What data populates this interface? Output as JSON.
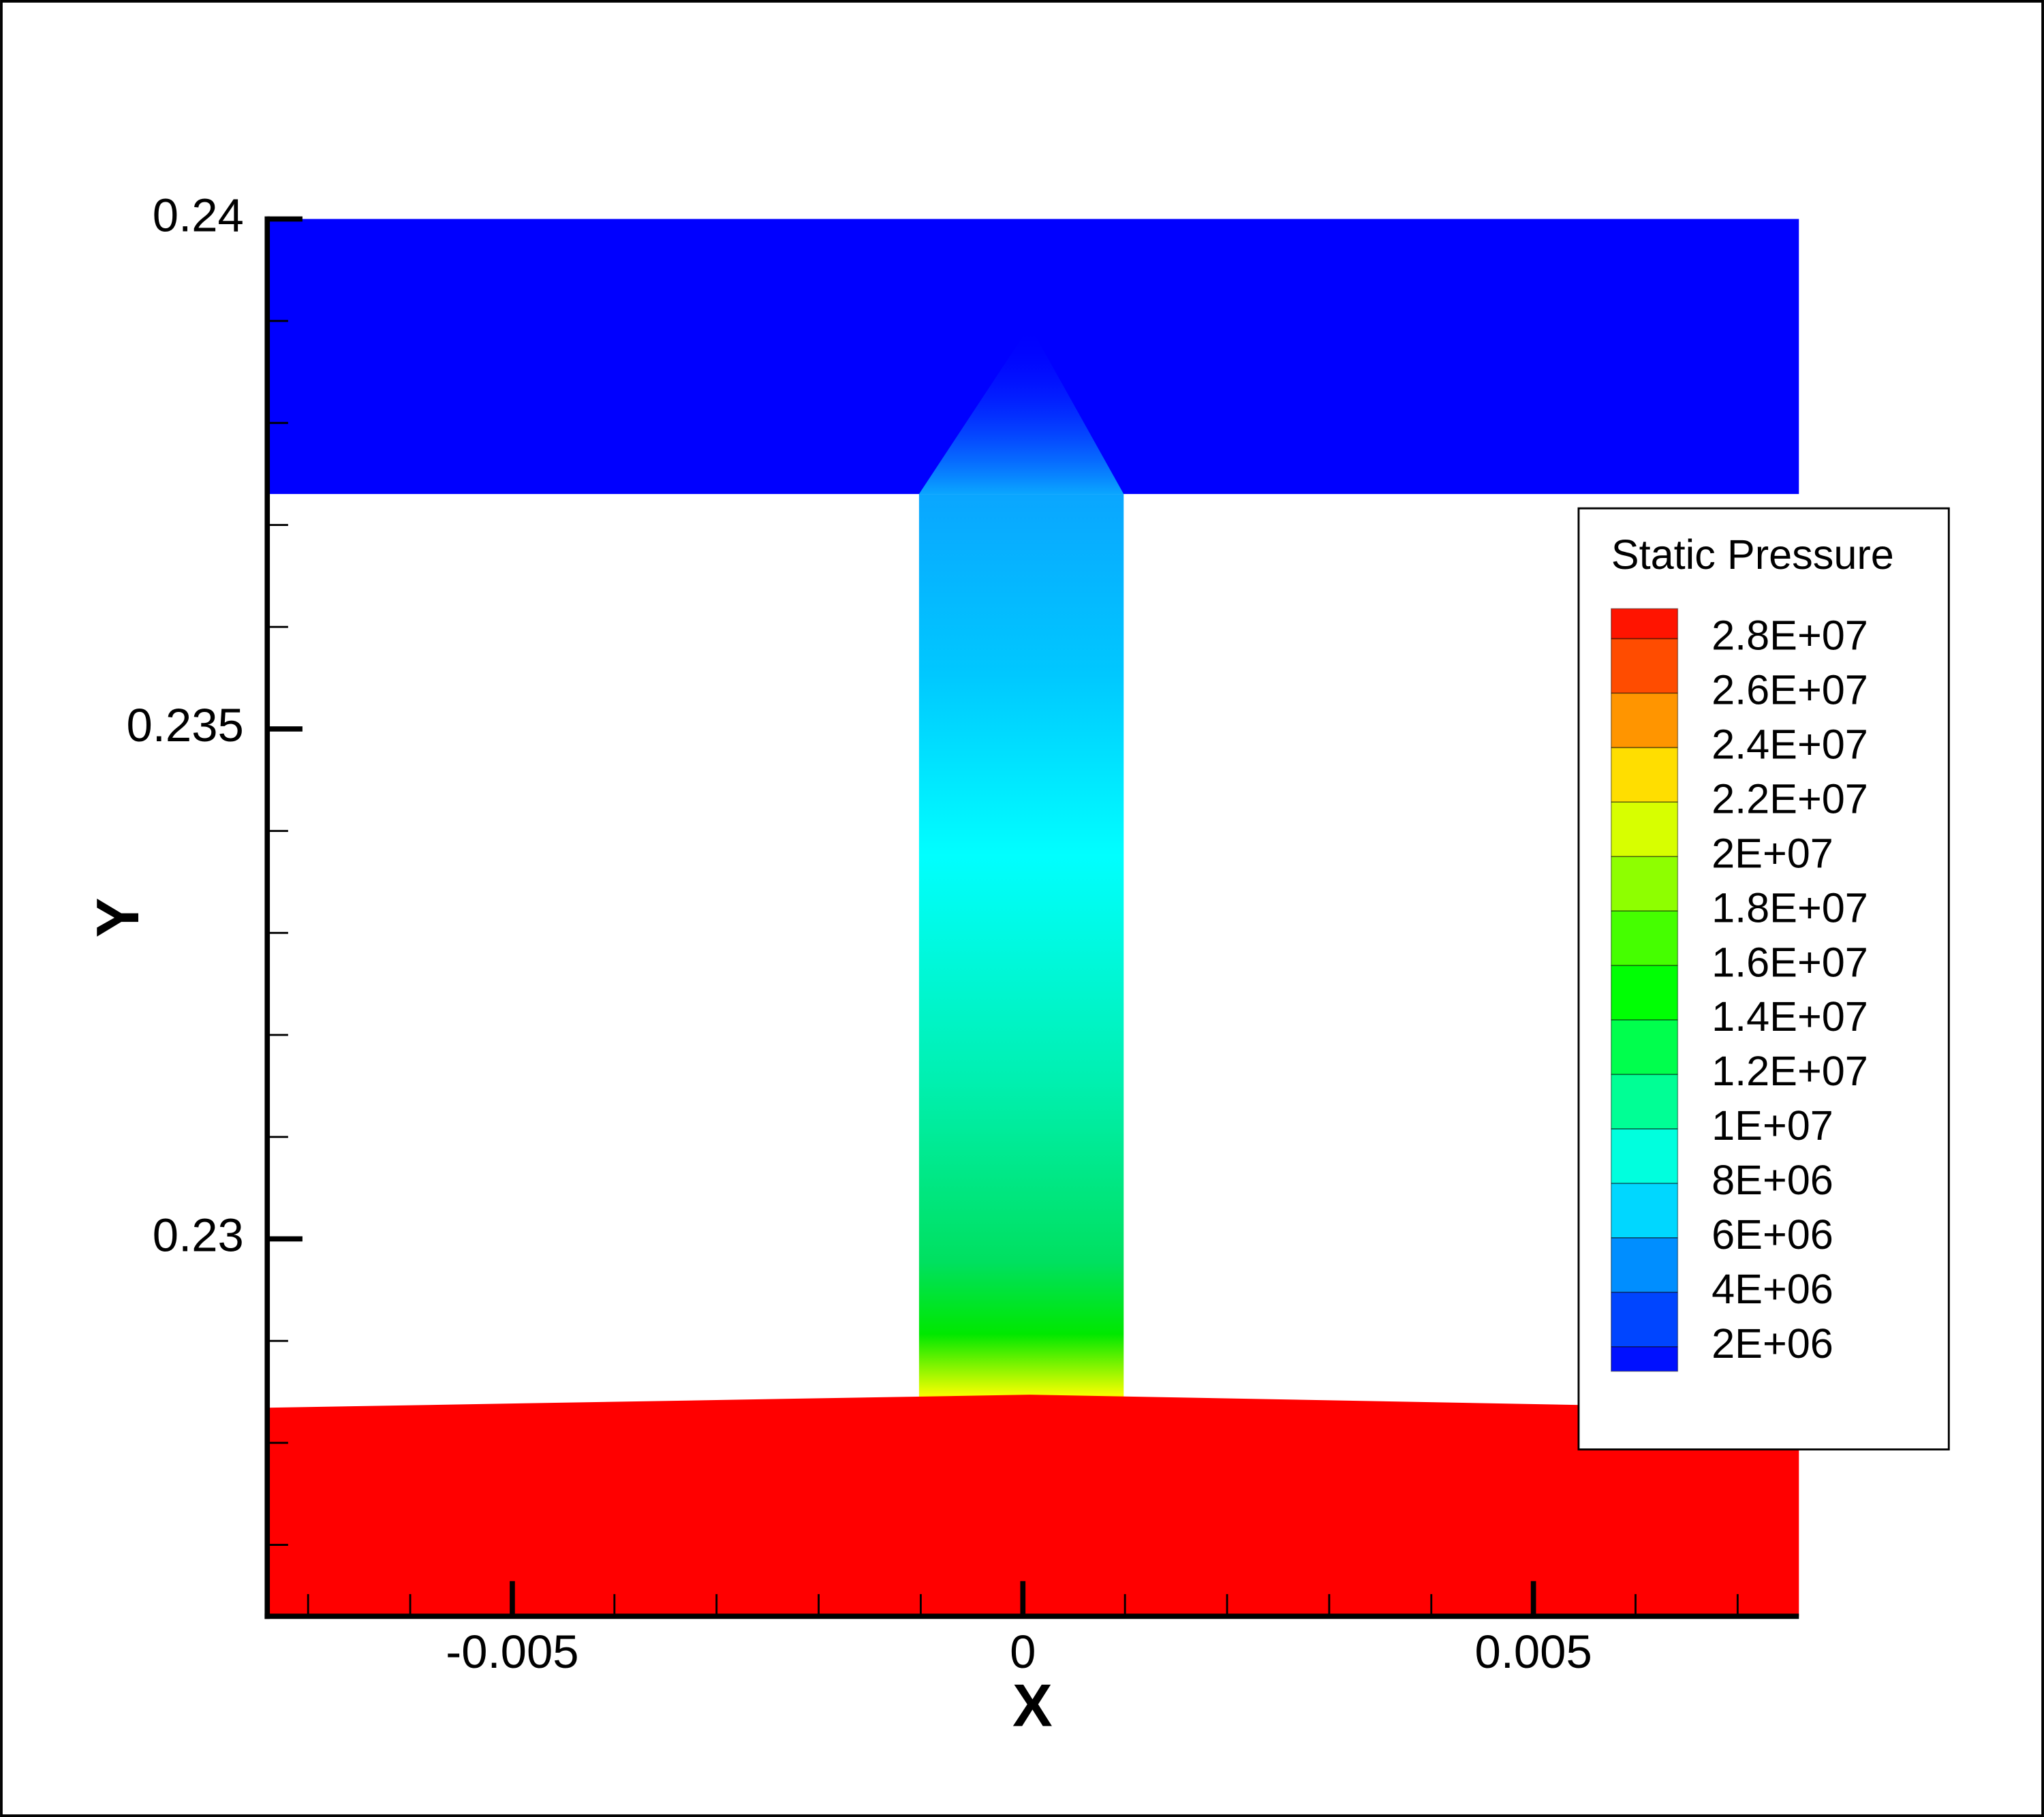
{
  "chart_data": {
    "type": "contour",
    "x_label": "X",
    "y_label": "Y",
    "xlim": [
      -0.0074,
      0.0076
    ],
    "ylim": [
      0.2263,
      0.24
    ],
    "xticks": [
      -0.005,
      0,
      0.005
    ],
    "yticks": [
      0.23,
      0.235,
      0.24
    ],
    "xminorticks": [
      -0.007,
      -0.006,
      -0.004,
      -0.003,
      -0.002,
      -0.001,
      0.001,
      0.002,
      0.003,
      0.004,
      0.006,
      0.007
    ],
    "yminorticks": [
      0.239,
      0.238,
      0.237,
      0.236,
      0.234,
      0.233,
      0.232,
      0.231,
      0.229,
      0.228,
      0.227
    ],
    "legend": {
      "title": "Static Pressure",
      "position": "right",
      "clim": [
        1100000,
        29100000
      ],
      "colormap": [
        "#0000ff",
        "#00ffff",
        "#00ff00",
        "#ffff00",
        "#ff0000"
      ],
      "levels": [
        {
          "value": 28000000,
          "label": "2.8E+07"
        },
        {
          "value": 26000000,
          "label": "2.6E+07"
        },
        {
          "value": 24000000,
          "label": "2.4E+07"
        },
        {
          "value": 22000000,
          "label": "2.2E+07"
        },
        {
          "value": 20000000,
          "label": "2E+07"
        },
        {
          "value": 18000000,
          "label": "1.8E+07"
        },
        {
          "value": 16000000,
          "label": "1.6E+07"
        },
        {
          "value": 14000000,
          "label": "1.4E+07"
        },
        {
          "value": 12000000,
          "label": "1.2E+07"
        },
        {
          "value": 10000000,
          "label": "1E+07"
        },
        {
          "value": 8000000,
          "label": "8E+06"
        },
        {
          "value": 6000000,
          "label": "6E+06"
        },
        {
          "value": 4000000,
          "label": "4E+06"
        },
        {
          "value": 2000000,
          "label": "2E+06"
        }
      ]
    }
  }
}
